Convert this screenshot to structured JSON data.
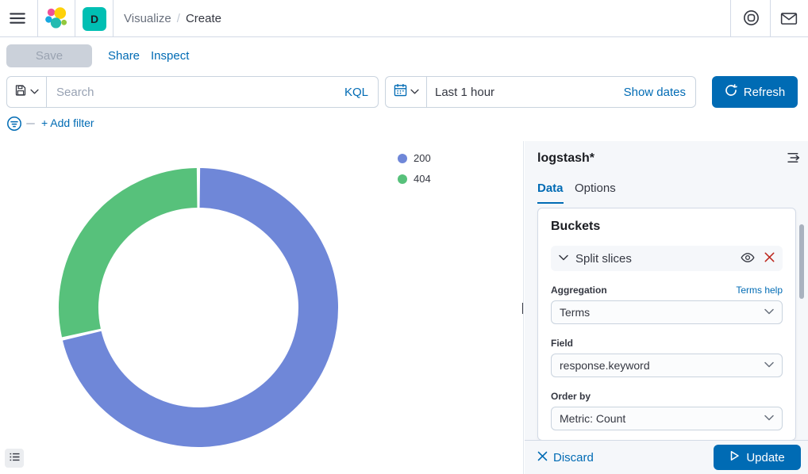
{
  "header": {
    "breadcrumb": {
      "parent": "Visualize",
      "separator": "/",
      "current": "Create"
    },
    "space_badge": "D"
  },
  "toolbar": {
    "save_label": "Save",
    "share_label": "Share",
    "inspect_label": "Inspect"
  },
  "query_bar": {
    "search_placeholder": "Search",
    "language_label": "KQL",
    "time_range": "Last 1 hour",
    "show_dates_label": "Show dates",
    "refresh_label": "Refresh"
  },
  "filter_bar": {
    "add_filter_label": "+ Add filter"
  },
  "chart_data": {
    "type": "pie",
    "donut": true,
    "title": "",
    "labels": [
      "200",
      "404"
    ],
    "values_percent": [
      71.4,
      28.6
    ],
    "colors": [
      "#6F87D8",
      "#57C17B"
    ],
    "legend_position": "top-right",
    "start_angle_deg": 0,
    "slice_order": "clockwise"
  },
  "editor": {
    "index_pattern": "logstash*",
    "tabs": [
      {
        "label": "Data"
      },
      {
        "label": "Options"
      }
    ],
    "buckets": {
      "heading": "Buckets",
      "bucket_label": "Split slices",
      "aggregation_label": "Aggregation",
      "aggregation_help": "Terms help",
      "aggregation_value": "Terms",
      "field_label": "Field",
      "field_value": "response.keyword",
      "order_by_label": "Order by",
      "order_by_value": "Metric: Count"
    },
    "footer": {
      "discard_label": "Discard",
      "update_label": "Update"
    }
  },
  "colors": {
    "primary": "#006BB4",
    "accent_teal": "#00BFB3",
    "danger": "#BD271E",
    "panel_bg": "#F5F7FA",
    "border": "#D3DAE6"
  }
}
